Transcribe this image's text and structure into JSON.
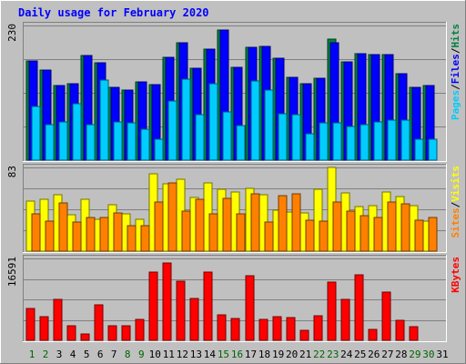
{
  "chart_data": {
    "type": "bar",
    "title": "Daily usage for February 2020",
    "categories": [
      "1",
      "2",
      "3",
      "4",
      "5",
      "6",
      "7",
      "8",
      "9",
      "10",
      "11",
      "12",
      "13",
      "14",
      "15",
      "16",
      "17",
      "18",
      "19",
      "20",
      "21",
      "22",
      "23",
      "24",
      "25",
      "26",
      "27",
      "28",
      "29",
      "30",
      "31"
    ],
    "weekend_days": [
      "1",
      "2",
      "8",
      "9",
      "15",
      "16",
      "22",
      "23",
      "29",
      "30"
    ],
    "panels": [
      {
        "id": "traffic",
        "max_label": "230",
        "ylim": [
          0,
          230
        ],
        "legend": [
          {
            "label": "Pages",
            "color": "#00ccff"
          },
          {
            "label": "Files",
            "color": "#0000ff"
          },
          {
            "label": "Hits",
            "color": "#008040"
          }
        ],
        "series": [
          {
            "name": "Hits",
            "color": "#008040",
            "values": [
              170,
              154,
              128,
              131,
              178,
              166,
              125,
              119,
              133,
              129,
              175,
              200,
              157,
              189,
              223,
              158,
              193,
              195,
              174,
              142,
              130,
              140,
              207,
              168,
              182,
              180,
              181,
              148,
              125,
              127,
              0
            ]
          },
          {
            "name": "Files",
            "color": "#0000ff",
            "values": [
              170,
              154,
              128,
              131,
              178,
              166,
              125,
              119,
              133,
              129,
              175,
              200,
              157,
              189,
              223,
              158,
              193,
              195,
              174,
              142,
              130,
              140,
              200,
              168,
              182,
              180,
              181,
              148,
              125,
              127,
              0
            ]
          },
          {
            "name": "Pages",
            "color": "#00ccff",
            "values": [
              92,
              60,
              66,
              96,
              60,
              136,
              66,
              64,
              53,
              36,
              101,
              138,
              78,
              130,
              83,
              59,
              135,
              119,
              80,
              78,
              45,
              63,
              64,
              58,
              61,
              66,
              68,
              68,
              36,
              36,
              0
            ]
          }
        ]
      },
      {
        "id": "visitors",
        "max_label": "83",
        "ylim": [
          0,
          83
        ],
        "legend": [
          {
            "label": "Sites",
            "color": "#ff8000"
          },
          {
            "label": "Visits",
            "color": "#ffff00"
          }
        ],
        "series": [
          {
            "name": "Visits",
            "color": "#ffff00",
            "values": [
              50,
              51,
              56,
              36,
              51,
              32,
              46,
              37,
              32,
              77,
              67,
              71,
              53,
              68,
              61,
              59,
              62,
              56,
              41,
              39,
              38,
              61,
              83,
              58,
              44,
              45,
              59,
              54,
              45,
              30,
              0
            ]
          },
          {
            "name": "Sites",
            "color": "#ff8000",
            "values": [
              37,
              30,
              48,
              29,
              33,
              33,
              38,
              25,
              25,
              49,
              68,
              40,
              51,
              37,
              52,
              37,
              57,
              29,
              55,
              57,
              31,
              30,
              49,
              40,
              35,
              33,
              49,
              47,
              31,
              33,
              0
            ]
          }
        ]
      },
      {
        "id": "kbytes",
        "max_label": "16591",
        "ylim": [
          0,
          16591
        ],
        "legend": [
          {
            "label": "KBytes",
            "color": "#ff0000"
          }
        ],
        "series": [
          {
            "name": "KBytes",
            "color": "#ff0000",
            "values": [
              6490,
              4760,
              8330,
              2940,
              1240,
              7260,
              2970,
              3030,
              4330,
              13910,
              15760,
              12050,
              8420,
              13840,
              5100,
              4390,
              13180,
              4330,
              4830,
              4690,
              2050,
              5030,
              11740,
              8260,
              13220,
              2240,
              9830,
              4070,
              2780,
              0,
              0
            ]
          }
        ]
      }
    ]
  }
}
